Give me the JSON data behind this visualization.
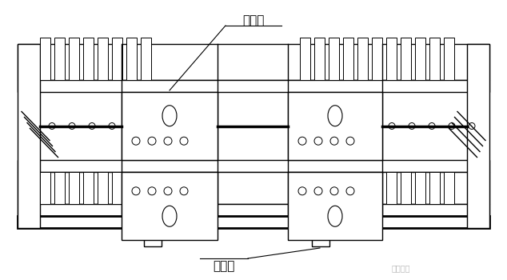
{
  "bg_color": "#ffffff",
  "line_color": "#000000",
  "fig_width": 6.34,
  "fig_height": 3.5,
  "dpi": 100,
  "title_label": "连接板",
  "bottom_label": "钐平台",
  "watermark": "豆丁施工",
  "lw_thin": 0.7,
  "lw_med": 1.0,
  "lw_thick": 2.0
}
